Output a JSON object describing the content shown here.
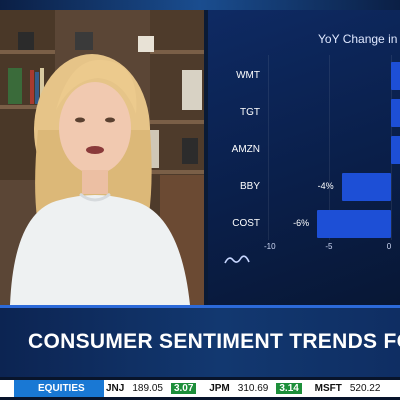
{
  "chart": {
    "title": "YoY Change in",
    "accent_color": "#1d4fd6"
  },
  "chart_data": {
    "type": "bar",
    "orientation": "horizontal",
    "categories": [
      "WMT",
      "TGT",
      "AMZN",
      "BBY",
      "COST"
    ],
    "values": [
      null,
      null,
      null,
      -4,
      -6
    ],
    "data_labels": [
      "",
      "",
      "",
      "-4%",
      "-6%"
    ],
    "x_ticks": [
      "-10",
      "-5",
      "0"
    ],
    "xlim": [
      -10,
      1
    ]
  },
  "banner": {
    "headline": "CONSUMER SENTIMENT TRENDS FO"
  },
  "ticker": {
    "tag": "EQUITIES",
    "items": [
      {
        "symbol": "JNJ",
        "price": "189.05",
        "change": "3.07"
      },
      {
        "symbol": "JPM",
        "price": "310.69",
        "change": "3.14"
      },
      {
        "symbol": "MSFT",
        "price": "520.22",
        "change": ""
      }
    ]
  }
}
